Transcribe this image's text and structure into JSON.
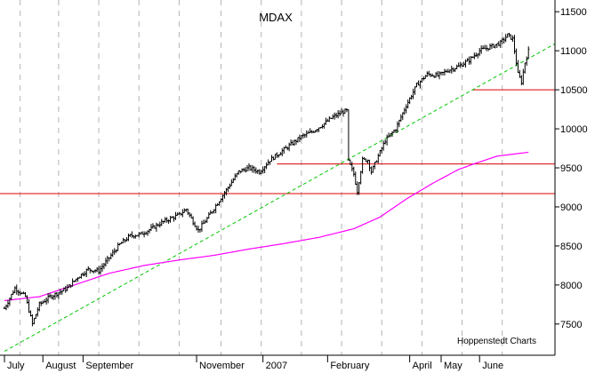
{
  "chart_data": {
    "type": "line",
    "title": "MDAX",
    "credit": "Hoppenstedt Charts",
    "xlabel": "",
    "ylabel": "",
    "grid": true,
    "y_axis_side": "right",
    "ylim": [
      7100,
      11650
    ],
    "y_ticks": [
      7500,
      8000,
      8500,
      9000,
      9500,
      10000,
      10500,
      11000,
      11500
    ],
    "x_months": [
      {
        "label": "July",
        "index": 0
      },
      {
        "label": "August",
        "index": 22
      },
      {
        "label": "September",
        "index": 45
      },
      {
        "label": "November",
        "index": 110
      },
      {
        "label": "2007",
        "index": 148
      },
      {
        "label": "February",
        "index": 185
      },
      {
        "label": "April",
        "index": 232
      },
      {
        "label": "May",
        "index": 250
      },
      {
        "label": "June",
        "index": 272
      }
    ],
    "x_count": 300,
    "x_grid_indices": [
      -7,
      9,
      31,
      54,
      77,
      100,
      124,
      147,
      170,
      193,
      216,
      239,
      262,
      285
    ],
    "colors": {
      "price": "#000000",
      "moving_average": "#ff00ff",
      "trendline": "#00c800",
      "support": "#dd0000",
      "grid": "#b4b4b4"
    },
    "series": [
      {
        "kind": "price",
        "anchors": [
          [
            0,
            7700
          ],
          [
            6,
            7960
          ],
          [
            12,
            7850
          ],
          [
            16,
            7500
          ],
          [
            20,
            7750
          ],
          [
            26,
            7850
          ],
          [
            30,
            7890
          ],
          [
            36,
            7960
          ],
          [
            42,
            8100
          ],
          [
            48,
            8200
          ],
          [
            54,
            8180
          ],
          [
            60,
            8350
          ],
          [
            66,
            8520
          ],
          [
            72,
            8630
          ],
          [
            78,
            8650
          ],
          [
            84,
            8720
          ],
          [
            90,
            8800
          ],
          [
            95,
            8850
          ],
          [
            100,
            8900
          ],
          [
            104,
            8970
          ],
          [
            108,
            8810
          ],
          [
            111,
            8700
          ],
          [
            116,
            8850
          ],
          [
            122,
            9050
          ],
          [
            128,
            9250
          ],
          [
            134,
            9450
          ],
          [
            140,
            9500
          ],
          [
            146,
            9450
          ],
          [
            152,
            9600
          ],
          [
            158,
            9700
          ],
          [
            164,
            9800
          ],
          [
            170,
            9900
          ],
          [
            176,
            9960
          ],
          [
            182,
            10050
          ],
          [
            188,
            10150
          ],
          [
            194,
            10220
          ],
          [
            196,
            10230
          ],
          [
            197,
            9580
          ],
          [
            200,
            9420
          ],
          [
            202,
            9200
          ],
          [
            205,
            9600
          ],
          [
            208,
            9600
          ],
          [
            210,
            9450
          ],
          [
            213,
            9600
          ],
          [
            218,
            9850
          ],
          [
            224,
            10000
          ],
          [
            230,
            10300
          ],
          [
            236,
            10560
          ],
          [
            242,
            10700
          ],
          [
            248,
            10680
          ],
          [
            254,
            10750
          ],
          [
            260,
            10800
          ],
          [
            266,
            10880
          ],
          [
            272,
            11000
          ],
          [
            278,
            11050
          ],
          [
            284,
            11100
          ],
          [
            288,
            11200
          ],
          [
            291,
            11150
          ],
          [
            294,
            10700
          ],
          [
            296,
            10600
          ],
          [
            298,
            10850
          ],
          [
            300,
            11000
          ]
        ]
      },
      {
        "kind": "moving_average",
        "anchors": [
          [
            0,
            7800
          ],
          [
            20,
            7850
          ],
          [
            40,
            8000
          ],
          [
            60,
            8150
          ],
          [
            80,
            8250
          ],
          [
            100,
            8320
          ],
          [
            120,
            8380
          ],
          [
            140,
            8460
          ],
          [
            160,
            8530
          ],
          [
            180,
            8610
          ],
          [
            200,
            8720
          ],
          [
            215,
            8870
          ],
          [
            230,
            9100
          ],
          [
            245,
            9300
          ],
          [
            260,
            9480
          ],
          [
            270,
            9560
          ],
          [
            282,
            9650
          ],
          [
            300,
            9700
          ]
        ]
      }
    ],
    "trendline": {
      "from": [
        0,
        7150
      ],
      "to": [
        320,
        11150
      ]
    },
    "support_lines": [
      {
        "value": 10500,
        "from": 268,
        "to": 320
      },
      {
        "value": 9550,
        "from": 156,
        "to": 320
      },
      {
        "value": 9170,
        "from": -10,
        "to": 320
      }
    ]
  }
}
